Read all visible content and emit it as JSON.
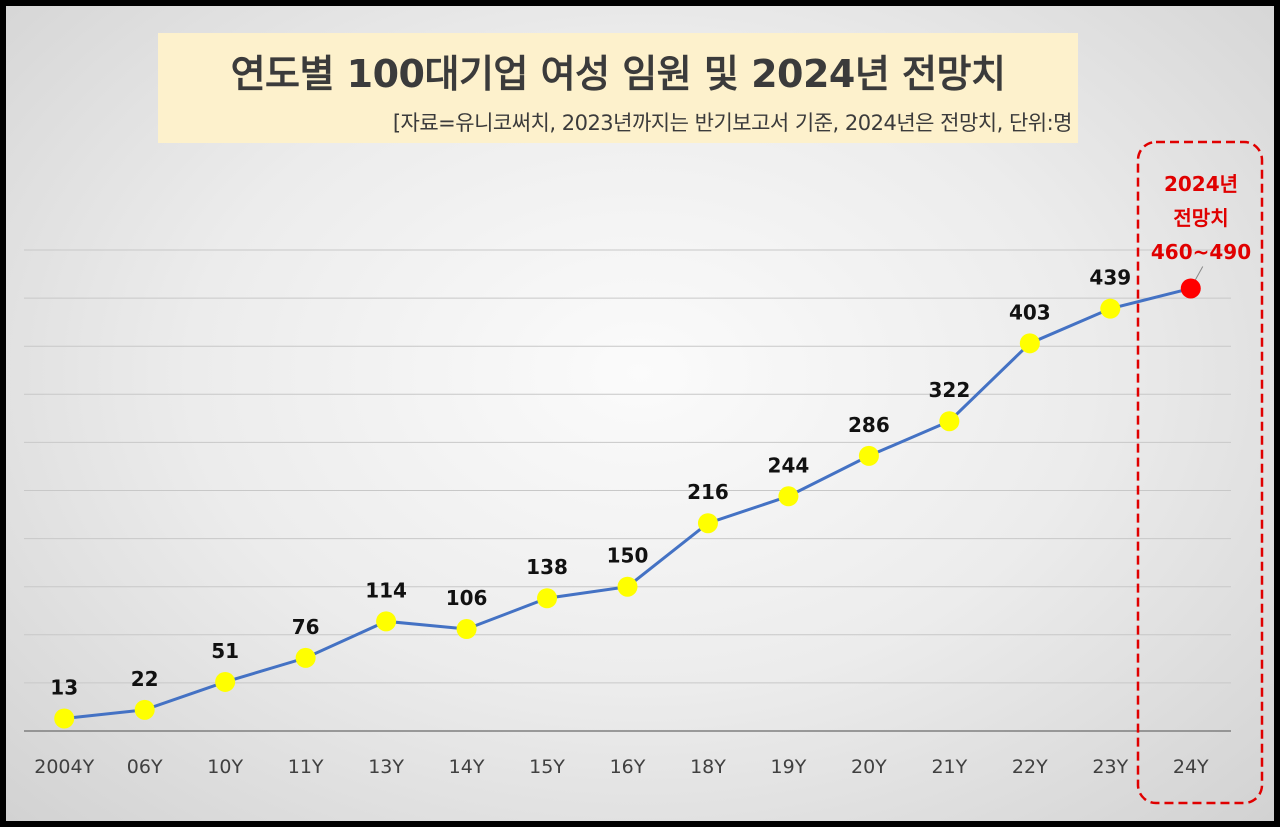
{
  "chart_data": {
    "type": "line",
    "title": "연도별 100대기업 여성 임원 및 2024년 전망치",
    "subtitle": "[자료=유니코써치, 2023년까지는 반기보고서 기준, 2024년은 전망치, 단위:명",
    "categories": [
      "2004Y",
      "06Y",
      "10Y",
      "11Y",
      "13Y",
      "14Y",
      "15Y",
      "16Y",
      "18Y",
      "19Y",
      "20Y",
      "21Y",
      "22Y",
      "23Y",
      "24Y"
    ],
    "series": [
      {
        "values": [
          13,
          22,
          51,
          76,
          114,
          106,
          138,
          150,
          216,
          244,
          286,
          322,
          403,
          439,
          460
        ]
      }
    ],
    "data_labels": [
      "13",
      "22",
      "51",
      "76",
      "114",
      "106",
      "138",
      "150",
      "216",
      "244",
      "286",
      "322",
      "403",
      "439",
      ""
    ],
    "annotation": {
      "lines": [
        "2024년",
        "전망치",
        "460~490"
      ],
      "color": "#e00000"
    },
    "ylim": [
      0,
      500
    ],
    "grid": true,
    "colors": {
      "line": "#4472c4",
      "marker": "#ffff00",
      "forecast_marker": "#ff0000"
    }
  }
}
